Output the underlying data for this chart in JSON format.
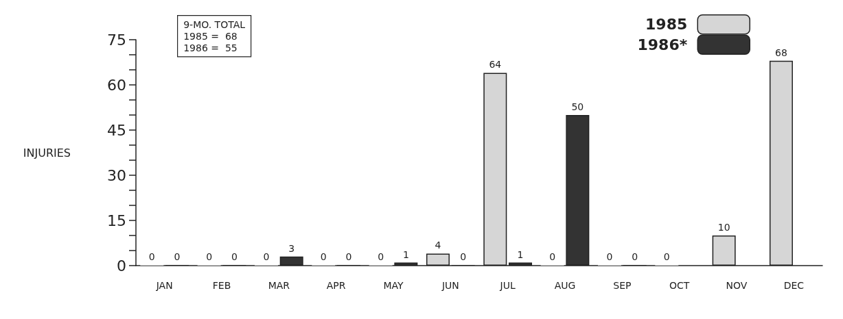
{
  "chart_data": {
    "type": "bar",
    "ylabel": "INJURIES",
    "categories": [
      "JAN",
      "FEB",
      "MAR",
      "APR",
      "MAY",
      "JUN",
      "JUL",
      "AUG",
      "SEP",
      "OCT",
      "NOV",
      "DEC"
    ],
    "series": [
      {
        "name": "1985",
        "color": "#d6d6d6",
        "values": [
          0,
          0,
          0,
          0,
          0,
          4,
          64,
          0,
          0,
          0,
          10,
          68
        ]
      },
      {
        "name": "1986*",
        "color": "#333333",
        "values": [
          0,
          0,
          3,
          0,
          1,
          0,
          1,
          50,
          0,
          null,
          null,
          null
        ]
      }
    ],
    "ylim": [
      0,
      75
    ],
    "yticks": [
      0,
      {
        "value": 5,
        "label": null
      },
      {
        "value": 10,
        "label": null
      },
      15,
      {
        "value": 20,
        "label": null
      },
      {
        "value": 25,
        "label": null
      },
      30,
      {
        "value": 35,
        "label": null
      },
      {
        "value": 40,
        "label": null
      },
      45,
      {
        "value": 50,
        "label": null
      },
      {
        "value": 55,
        "label": null
      },
      60,
      {
        "value": 65,
        "label": null
      },
      {
        "value": 70,
        "label": null
      },
      75
    ],
    "annotations": [
      "9-MO. TOTAL",
      "1985 =  68",
      "1986 =  55"
    ],
    "data_labels": true,
    "grid": false,
    "legend": "top right"
  }
}
